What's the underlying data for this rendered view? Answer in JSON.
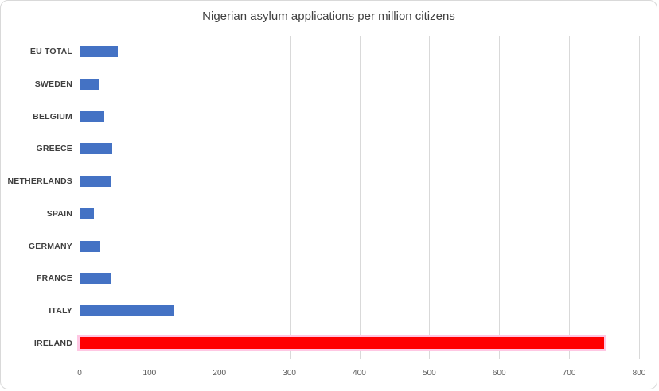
{
  "chart_data": {
    "type": "bar",
    "orientation": "horizontal",
    "title": "Nigerian asylum applications per million citizens",
    "categories": [
      "EU TOTAL",
      "SWEDEN",
      "BELGIUM",
      "GREECE",
      "NETHERLANDS",
      "SPAIN",
      "GERMANY",
      "FRANCE",
      "ITALY",
      "IRELAND"
    ],
    "values": [
      55,
      29,
      35,
      47,
      45,
      21,
      30,
      45,
      135,
      750
    ],
    "xlabel": "",
    "ylabel": "",
    "xlim": [
      0,
      800
    ],
    "tick_step": 100,
    "tick_labels": [
      "0",
      "100",
      "200",
      "300",
      "400",
      "500",
      "600",
      "700",
      "800"
    ],
    "grid": true,
    "legend": "none",
    "default_bar_color": "#4472c4",
    "highlight_category": "IRELAND",
    "highlight_bar_color": "#ff0000",
    "highlight_outline_color": "#ffc7e3",
    "gridline_color": "#d9d9d9",
    "title_color": "#404040",
    "label_color": "#404040",
    "tick_color": "#595959"
  }
}
